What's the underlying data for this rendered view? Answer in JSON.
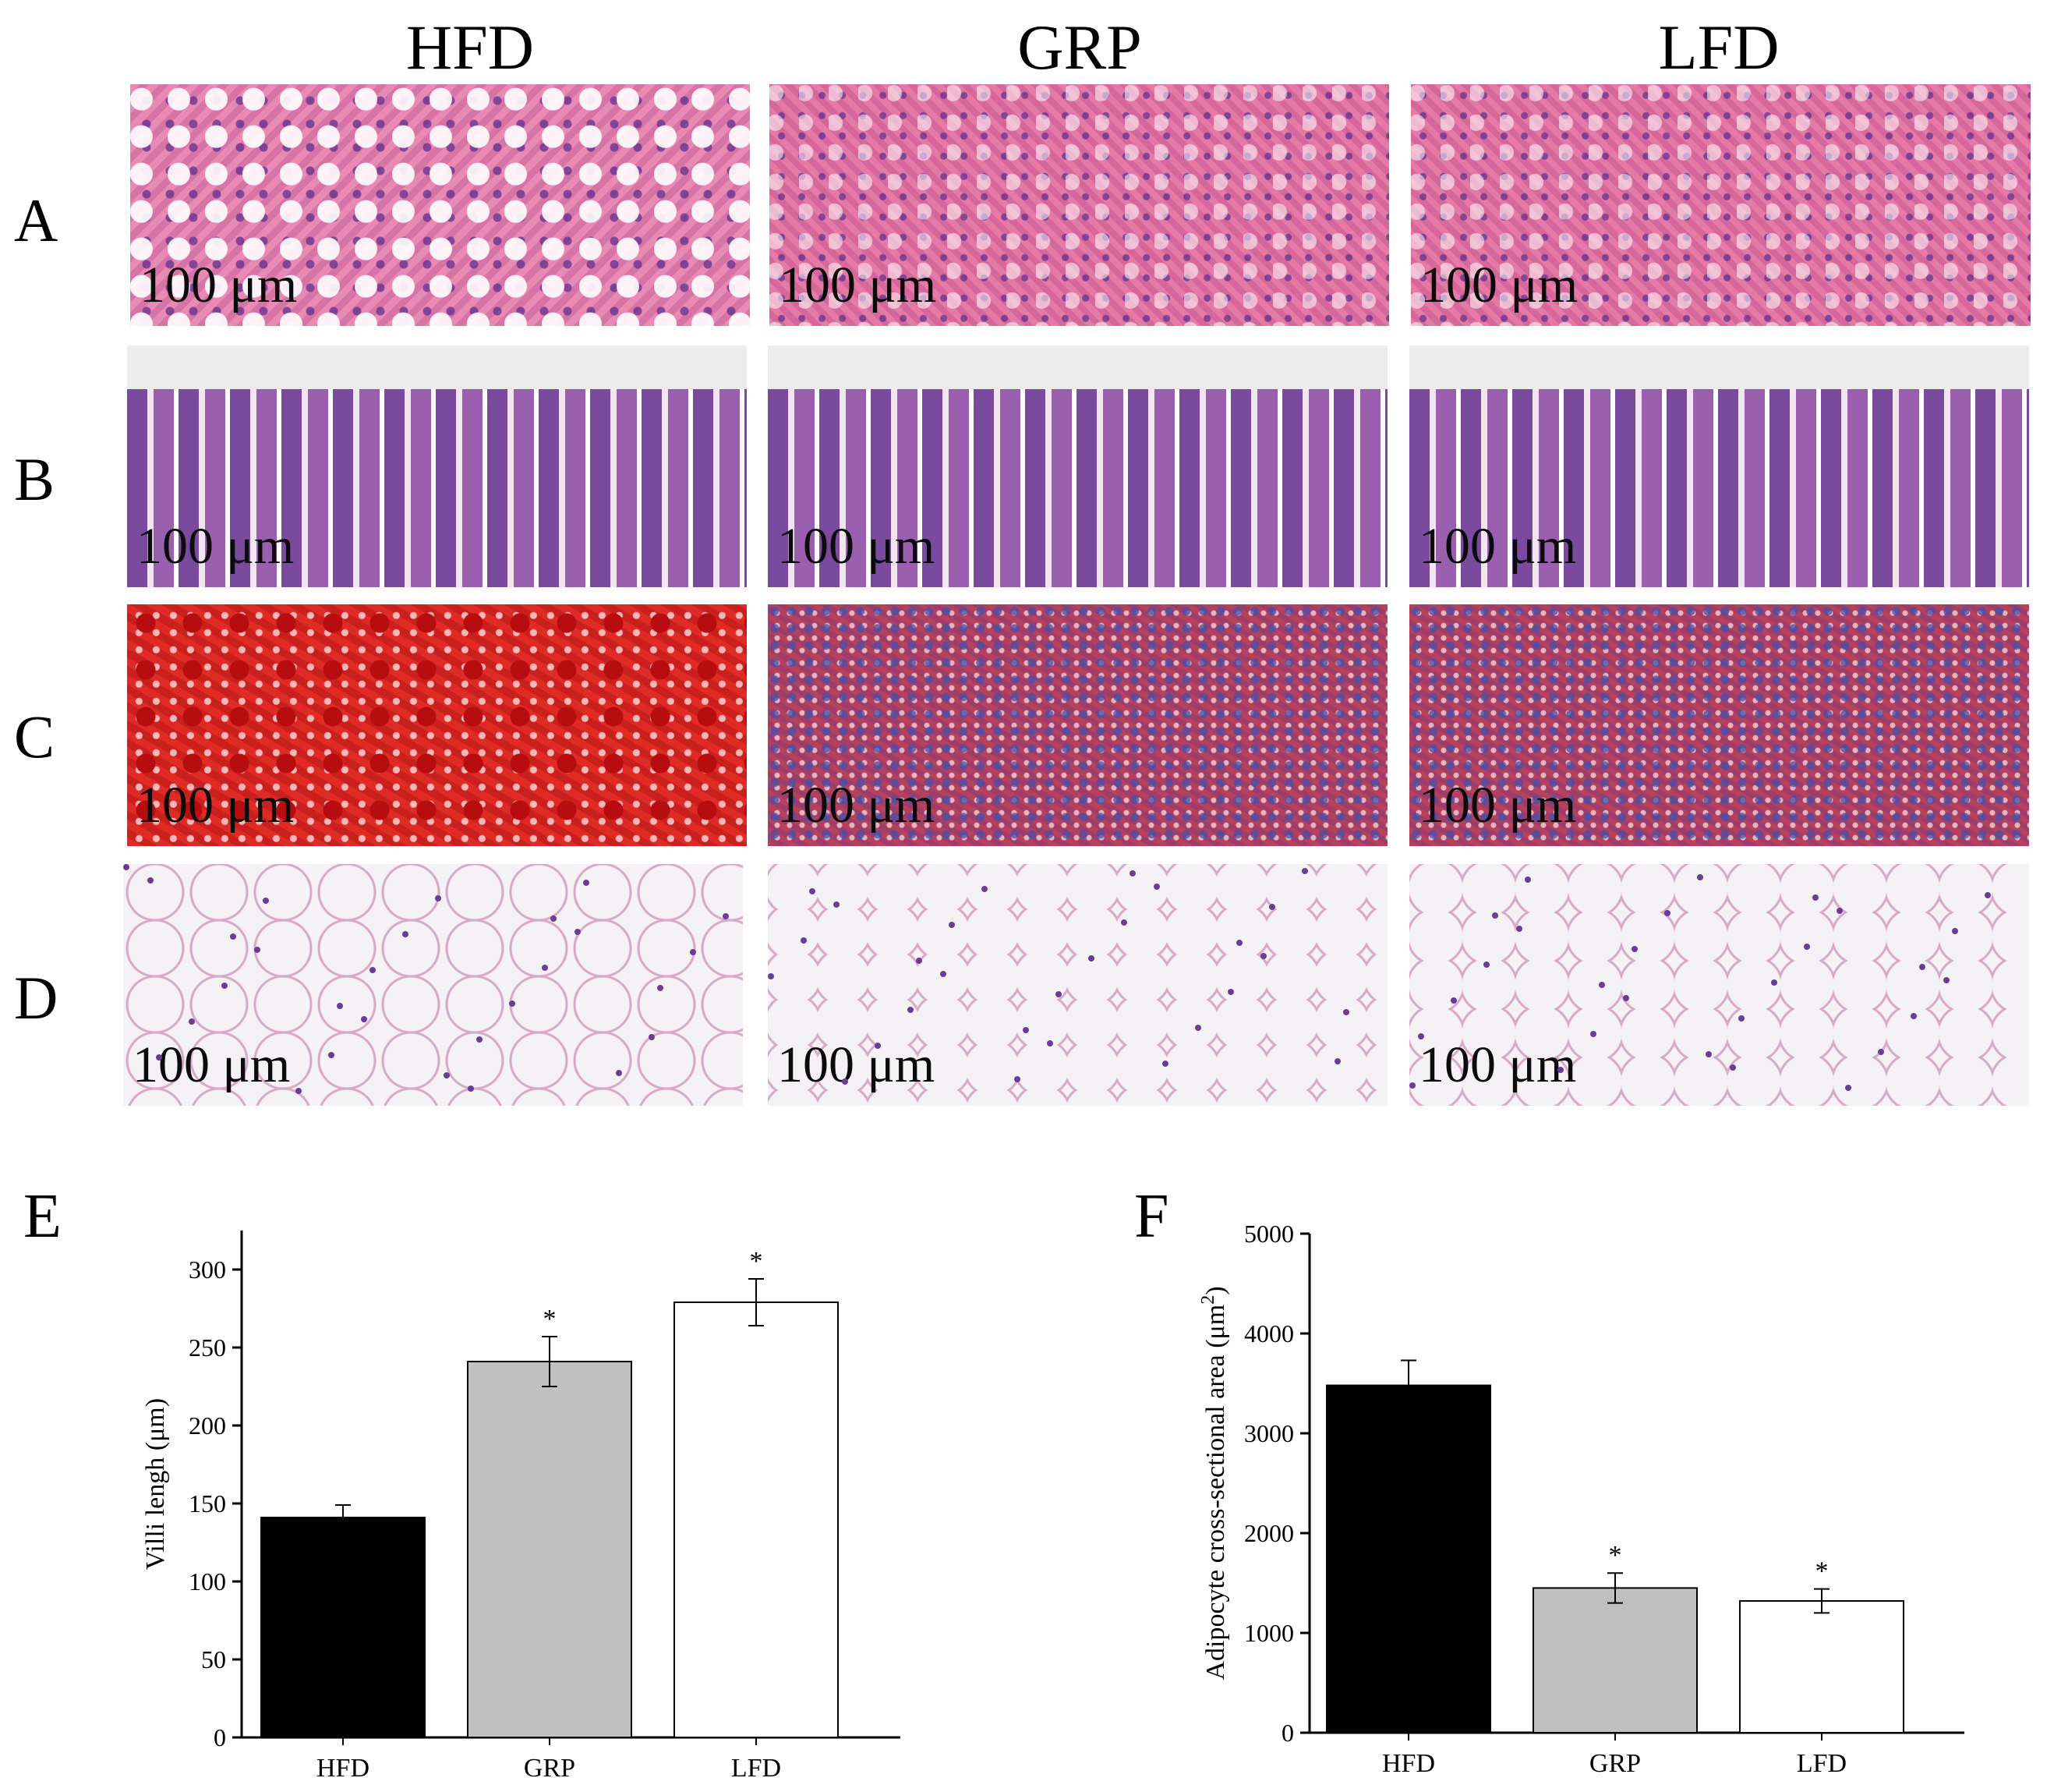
{
  "columns": [
    "HFD",
    "GRP",
    "LFD"
  ],
  "rows": [
    "A",
    "B",
    "C",
    "D"
  ],
  "scale_bar": "100 μm",
  "charts": {
    "E": {
      "label": "E"
    },
    "F": {
      "label": "F"
    }
  },
  "chart_data": [
    {
      "type": "bar",
      "categories": [
        "HFD",
        "GRP",
        "LFD"
      ],
      "values": [
        141,
        241,
        279
      ],
      "errors": [
        8,
        16,
        15
      ],
      "significance": [
        "",
        "*",
        "*"
      ],
      "title": "",
      "xlabel": "",
      "ylabel": "Villi lengh (μm)",
      "ylim": [
        0,
        325
      ],
      "yticks": [
        0,
        50,
        100,
        150,
        200,
        250,
        300
      ],
      "bar_colors": [
        "#000000",
        "#c0c0c0",
        "#ffffff"
      ]
    },
    {
      "type": "bar",
      "categories": [
        "HFD",
        "GRP",
        "LFD"
      ],
      "values": [
        3480,
        1450,
        1320
      ],
      "errors": [
        250,
        150,
        120
      ],
      "significance": [
        "",
        "*",
        "*"
      ],
      "title": "",
      "xlabel": "",
      "ylabel": "Adipocyte cross-sectional area (μm²)",
      "ylim": [
        0,
        5000
      ],
      "yticks": [
        0,
        1000,
        2000,
        3000,
        4000,
        5000
      ],
      "bar_colors": [
        "#000000",
        "#c0c0c0",
        "#ffffff"
      ]
    }
  ]
}
